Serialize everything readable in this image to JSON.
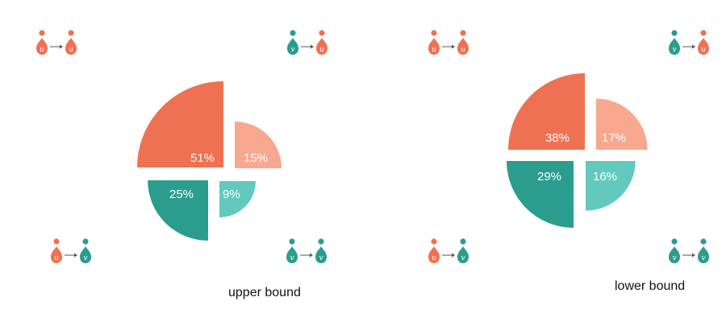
{
  "colors": {
    "u_to_u": "#ef7153",
    "v_to_u": "#f7a88f",
    "u_to_v": "#2a9d8f",
    "v_to_v": "#63c8bd",
    "u_person": "#ef7153",
    "v_person": "#2a9d8f",
    "arrow": "#555555"
  },
  "chart_data": [
    {
      "type": "pie",
      "caption": "upper bound",
      "slices": [
        {
          "key": "u_to_u",
          "from": "u",
          "to": "u",
          "value": 51,
          "label": "51%"
        },
        {
          "key": "v_to_u",
          "from": "v",
          "to": "u",
          "value": 15,
          "label": "15%"
        },
        {
          "key": "u_to_v",
          "from": "u",
          "to": "v",
          "value": 25,
          "label": "25%"
        },
        {
          "key": "v_to_v",
          "from": "v",
          "to": "v",
          "value": 9,
          "label": "9%"
        }
      ]
    },
    {
      "type": "pie",
      "caption": "lower bound",
      "slices": [
        {
          "key": "u_to_u",
          "from": "u",
          "to": "u",
          "value": 38,
          "label": "38%"
        },
        {
          "key": "v_to_u",
          "from": "v",
          "to": "u",
          "value": 17,
          "label": "17%"
        },
        {
          "key": "u_to_v",
          "from": "u",
          "to": "v",
          "value": 29,
          "label": "29%"
        },
        {
          "key": "v_to_v",
          "from": "v",
          "to": "v",
          "value": 16,
          "label": "16%"
        }
      ]
    }
  ]
}
